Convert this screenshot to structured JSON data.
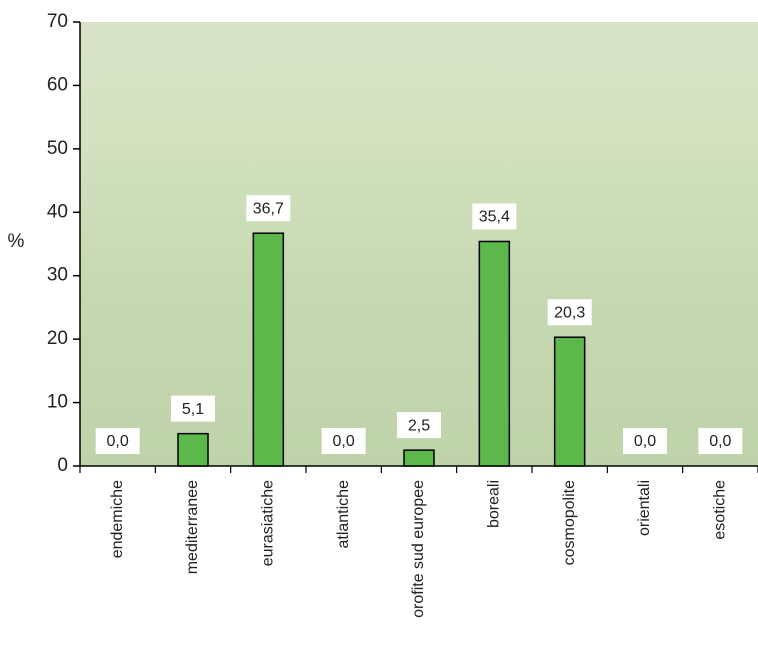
{
  "chart_data": {
    "type": "bar",
    "y_label": "%",
    "categories": [
      "endemiche",
      "mediterranee",
      "eurasiatiche",
      "atlantiche",
      "orofite sud europee",
      "boreali",
      "cosmopolite",
      "orientali",
      "esotiche"
    ],
    "values": [
      0.0,
      5.1,
      36.7,
      0.0,
      2.5,
      35.4,
      20.3,
      0.0,
      0.0
    ],
    "value_labels": [
      "0,0",
      "5,1",
      "36,7",
      "0,0",
      "2,5",
      "35,4",
      "20,3",
      "0,0",
      "0,0"
    ],
    "color": "#5cb84a",
    "ylim": [
      0,
      70
    ],
    "yticks": [
      0,
      10,
      20,
      30,
      40,
      50,
      60,
      70
    ]
  }
}
